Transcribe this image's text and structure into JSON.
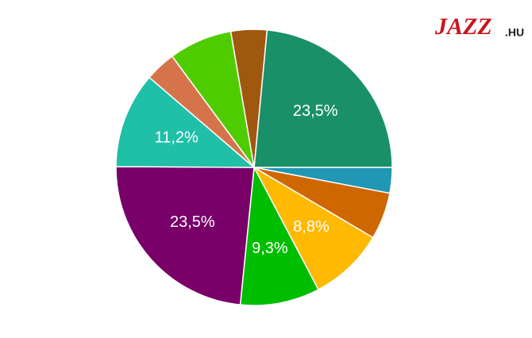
{
  "chart_data": {
    "type": "pie",
    "values": [
      23.5,
      3.0,
      5.5,
      8.8,
      9.3,
      23.5,
      11.2,
      3.6,
      7.4,
      4.2
    ],
    "value_labels": [
      "23,5%",
      null,
      null,
      "8,8%",
      "9,3%",
      "23,5%",
      "11,2%",
      null,
      null,
      null
    ],
    "colors": [
      "#1a9068",
      "#2196b5",
      "#cf6700",
      "#ffb900",
      "#00bd00",
      "#780068",
      "#1fbfa8",
      "#d5744b",
      "#4fcc00",
      "#a0580e"
    ]
  },
  "logo": {
    "main": "JAZZ",
    "suffix": ".HU"
  }
}
